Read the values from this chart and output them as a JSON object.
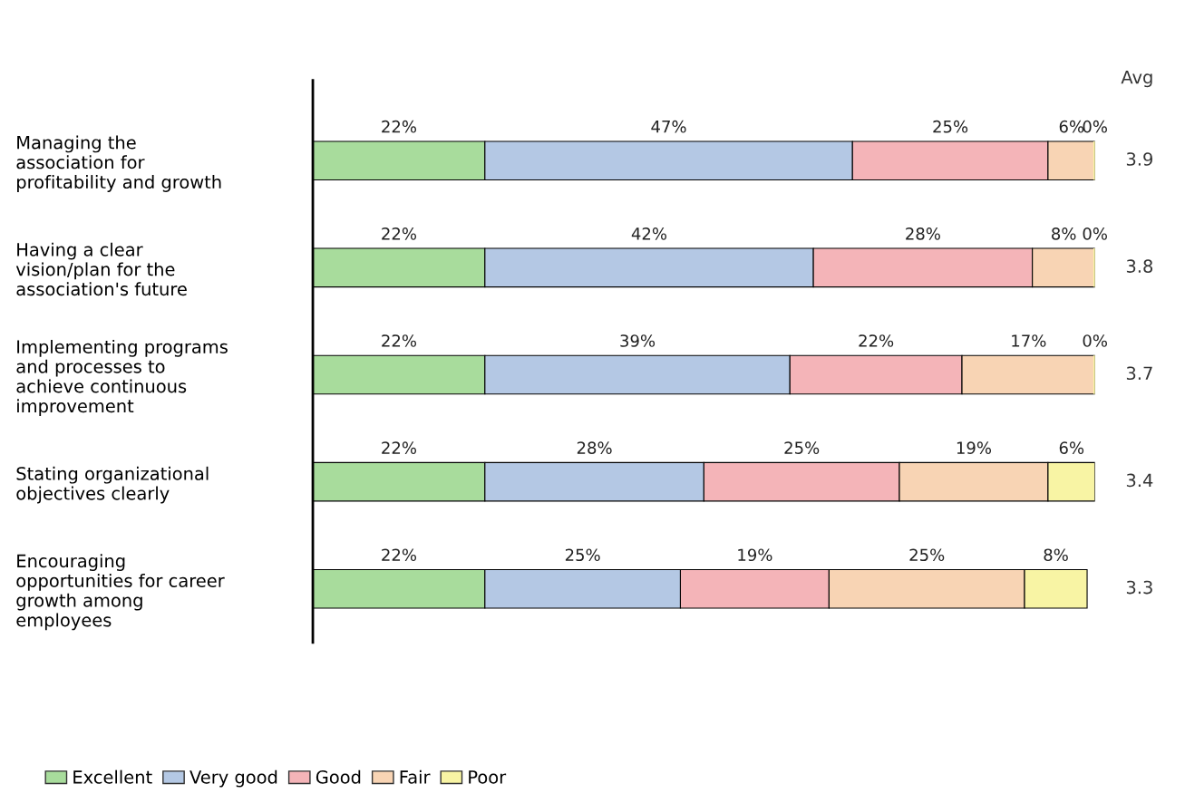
{
  "chart_data": {
    "type": "bar",
    "orientation": "horizontal",
    "stacked": true,
    "categories": [
      "Managing the\nassociation for\nprofitability and growth",
      "Having a clear\nvision/plan for the\nassociation's future",
      "Implementing programs\nand processes to\nachieve continuous\nimprovement",
      "Stating organizational\nobjectives clearly",
      "Encouraging\nopportunities for career\ngrowth among\nemployees"
    ],
    "series": [
      {
        "name": "Excellent",
        "color": "#a8dc9c",
        "values": [
          22,
          22,
          22,
          22,
          22
        ],
        "value_labels": [
          "22%",
          "22%",
          "22%",
          "22%",
          "22%"
        ]
      },
      {
        "name": "Very good",
        "color": "#b4c8e4",
        "values": [
          47,
          42,
          39,
          28,
          25
        ],
        "value_labels": [
          "47%",
          "42%",
          "39%",
          "28%",
          "25%"
        ]
      },
      {
        "name": "Good",
        "color": "#f4b4b8",
        "values": [
          25,
          28,
          22,
          25,
          19
        ],
        "value_labels": [
          "25%",
          "28%",
          "22%",
          "25%",
          "19%"
        ]
      },
      {
        "name": "Fair",
        "color": "#f8d4b4",
        "values": [
          6,
          8,
          17,
          19,
          25
        ],
        "value_labels": [
          "6%",
          "8%",
          "17%",
          "19%",
          "25%"
        ]
      },
      {
        "name": "Poor",
        "color": "#f8f4a4",
        "values": [
          0,
          0,
          0,
          6,
          8
        ],
        "value_labels": [
          "0%",
          "0%",
          "0%",
          "6%",
          "8%"
        ]
      }
    ],
    "xlim": [
      0,
      100
    ],
    "tick_labels": "y",
    "legend": "bottom left",
    "grid": false,
    "annotations": [
      "Avg",
      "3.9",
      "3.8",
      "3.7",
      "3.4",
      "3.3"
    ]
  }
}
